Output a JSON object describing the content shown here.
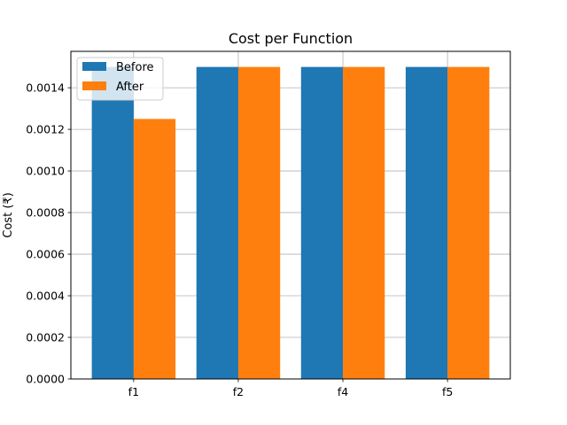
{
  "chart_data": {
    "type": "bar",
    "title": "Cost per Function",
    "xlabel": "",
    "ylabel": "Cost (₹)",
    "categories": [
      "f1",
      "f2",
      "f4",
      "f5"
    ],
    "series": [
      {
        "name": "Before",
        "values": [
          0.0015,
          0.0015,
          0.0015,
          0.0015
        ]
      },
      {
        "name": "After",
        "values": [
          0.00125,
          0.0015,
          0.0015,
          0.0015
        ]
      }
    ],
    "ylim": [
      0,
      0.001575
    ],
    "yticks": [
      "0.0000",
      "0.0002",
      "0.0004",
      "0.0006",
      "0.0008",
      "0.0010",
      "0.0012",
      "0.0014"
    ],
    "grid": true,
    "legend_position": "top-left"
  },
  "colors": {
    "Before": "#1f77b4",
    "After": "#ff7f0e",
    "grid": "#b0b0b0",
    "axes": "#000000"
  }
}
